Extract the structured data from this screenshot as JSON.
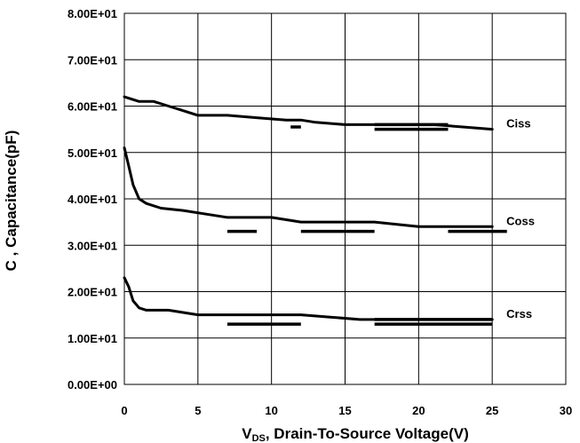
{
  "chart_data": {
    "type": "line",
    "title": "",
    "xlabel_prefix": "V",
    "xlabel_sub": "DS",
    "xlabel_rest": ", Drain-To-Source Voltage(V)",
    "ylabel": "C , Capacitance(pF)",
    "xlim": [
      0,
      30
    ],
    "ylim": [
      0,
      80
    ],
    "x_ticks": [
      0,
      5,
      10,
      15,
      20,
      25,
      30
    ],
    "x_tick_labels": [
      "0",
      "5",
      "10",
      "15",
      "20",
      "25",
      "30"
    ],
    "y_ticks": [
      0,
      10,
      20,
      30,
      40,
      50,
      60,
      70,
      80
    ],
    "y_tick_labels": [
      "0.00E+00",
      "1.00E+01",
      "2.00E+01",
      "3.00E+01",
      "4.00E+01",
      "5.00E+01",
      "6.00E+01",
      "7.00E+01",
      "8.00E+01"
    ],
    "grid": true,
    "series": [
      {
        "name": "Ciss",
        "x": [
          0,
          0.5,
          1,
          2,
          3,
          4,
          5,
          7,
          9,
          11,
          12,
          13,
          15,
          17,
          19,
          21,
          23,
          25
        ],
        "y": [
          62,
          61.5,
          61,
          61,
          60,
          59,
          58,
          58,
          57.5,
          57,
          57,
          56.5,
          56,
          56,
          56,
          56,
          55.5,
          55
        ],
        "segments": [
          [
            11.3,
            12,
            55.5
          ],
          [
            17,
            22,
            56
          ],
          [
            17,
            22,
            55
          ]
        ]
      },
      {
        "name": "Coss",
        "x": [
          0,
          0.3,
          0.6,
          1,
          1.5,
          2.5,
          4,
          6,
          7,
          8,
          10,
          12,
          14,
          17,
          20,
          22,
          25
        ],
        "y": [
          51,
          47,
          43,
          40,
          39,
          38,
          37.5,
          36.5,
          36,
          36,
          36,
          35,
          35,
          35,
          34,
          34,
          34
        ],
        "segments": [
          [
            7,
            9,
            33
          ],
          [
            12,
            17,
            33
          ],
          [
            22,
            26,
            33
          ]
        ]
      },
      {
        "name": "Crss",
        "x": [
          0,
          0.3,
          0.6,
          1,
          1.5,
          3,
          5,
          7,
          10,
          12,
          14,
          16,
          20,
          25
        ],
        "y": [
          23,
          21,
          18,
          16.5,
          16,
          16,
          15,
          15,
          15,
          15,
          14.5,
          14,
          14,
          14
        ],
        "segments": [
          [
            7,
            12,
            13
          ],
          [
            17,
            25,
            14
          ],
          [
            17,
            25,
            13
          ]
        ]
      }
    ]
  }
}
